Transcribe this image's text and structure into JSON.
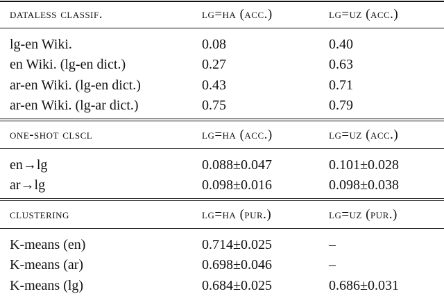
{
  "sections": [
    {
      "header": [
        "dataless classif.",
        "lg=ha (acc.)",
        "lg=uz (acc.)"
      ],
      "rows": [
        [
          "lg-en Wiki.",
          "0.08",
          "0.40"
        ],
        [
          "en Wiki. (lg-en dict.)",
          "0.27",
          "0.63"
        ],
        [
          "ar-en Wiki. (lg-en dict.)",
          "0.43",
          "0.71"
        ],
        [
          "ar-en Wiki. (lg-ar dict.)",
          "0.75",
          "0.79"
        ]
      ]
    },
    {
      "header": [
        "one-shot clscl",
        "lg=ha (acc.)",
        "lg=uz (acc.)"
      ],
      "rows": [
        [
          "en→lg",
          "0.088±0.047",
          "0.101±0.028"
        ],
        [
          "ar→lg",
          "0.098±0.016",
          "0.098±0.038"
        ]
      ]
    },
    {
      "header": [
        "clustering",
        "lg=ha (pur.)",
        "lg=uz (pur.)"
      ],
      "rows": [
        [
          "K-means (en)",
          "0.714±0.025",
          "–"
        ],
        [
          "K-means (ar)",
          "0.698±0.046",
          "–"
        ],
        [
          "K-means (lg)",
          "0.684±0.025",
          "0.686±0.031"
        ]
      ]
    }
  ]
}
